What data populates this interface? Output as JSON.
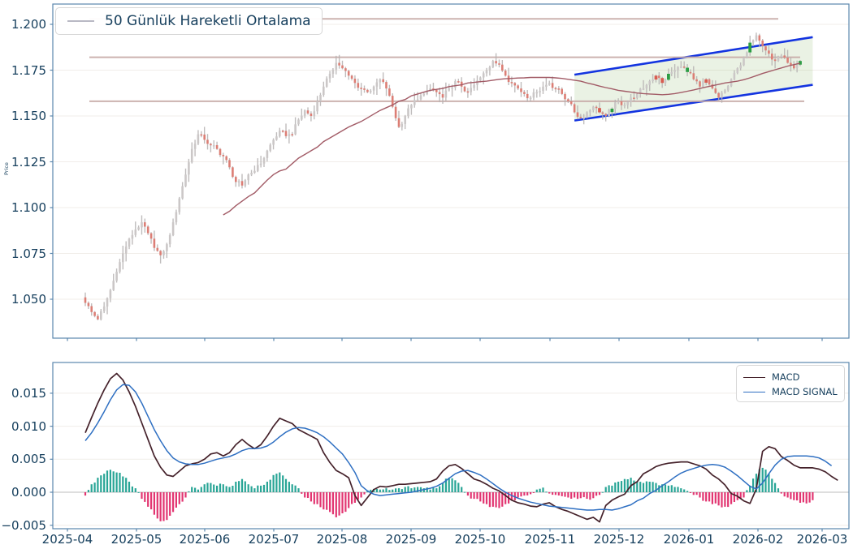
{
  "price_panel": {
    "legend_label": "50 Günlük Hareketli Ortalama",
    "ylabel": "Price",
    "ytick_labels": [
      "1.200",
      "1.175",
      "1.150",
      "1.125",
      "1.100",
      "1.075",
      "1.050"
    ]
  },
  "macd_panel": {
    "legend": {
      "macd_label": "MACD",
      "signal_label": "MACD SIGNAL"
    },
    "ytick_labels": [
      "0.015",
      "0.010",
      "0.005",
      "0.000",
      "−0.005"
    ]
  },
  "x_axis": {
    "tick_labels": [
      "2025-04",
      "2025-05",
      "2025-06",
      "2025-07",
      "2025-08",
      "2025-09",
      "2025-10",
      "2025-11",
      "2025-12",
      "2026-01",
      "2026-02",
      "2026-03"
    ]
  },
  "colors": {
    "text": "#17405e",
    "spine": "#5b87ad",
    "grid": "#f1ede9",
    "zero_line": "#bdbdbd",
    "wick": "#b5b1b1",
    "candle_up": "#cbc7c7",
    "candle_down": "#dc7e75",
    "candle_down_strong": "#d85c50",
    "candle_green": "#2b9e44",
    "ma": "#a25b66",
    "legend_sample": "#b9b9c4",
    "channel_line": "#1334e0",
    "channel_fill": "rgba(150,190,120,0.20)",
    "level": "#c7aaa7",
    "macd": "#45222b",
    "macd_signal": "#2e6fc2",
    "hist_pos": "#28a596",
    "hist_neg": "#e23571"
  },
  "chart_data": [
    {
      "type": "candlestick",
      "title": "",
      "ylabel": "Price",
      "legend": [
        "50 Günlük Hareketli Ortalama"
      ],
      "ylim": [
        1.029,
        1.211
      ],
      "yticks": [
        1.2,
        1.175,
        1.15,
        1.125,
        1.1,
        1.075,
        1.05
      ],
      "x_tick_labels": [
        "2025-04",
        "2025-05",
        "2025-06",
        "2025-07",
        "2025-08",
        "2025-09",
        "2025-10",
        "2025-11",
        "2025-12",
        "2026-01",
        "2026-02",
        "2026-03"
      ],
      "sampling": "close prices sampled about every 2 trading days, Apr 2025 - Feb 2026",
      "close": [
        1.048,
        1.043,
        1.039,
        1.046,
        1.055,
        1.065,
        1.075,
        1.083,
        1.088,
        1.092,
        1.086,
        1.078,
        1.074,
        1.08,
        1.092,
        1.105,
        1.118,
        1.132,
        1.14,
        1.137,
        1.134,
        1.132,
        1.128,
        1.122,
        1.114,
        1.112,
        1.118,
        1.12,
        1.124,
        1.131,
        1.137,
        1.142,
        1.139,
        1.14,
        1.148,
        1.153,
        1.15,
        1.158,
        1.166,
        1.173,
        1.179,
        1.176,
        1.172,
        1.168,
        1.165,
        1.163,
        1.166,
        1.17,
        1.165,
        1.155,
        1.144,
        1.15,
        1.156,
        1.159,
        1.162,
        1.165,
        1.163,
        1.16,
        1.165,
        1.169,
        1.166,
        1.163,
        1.167,
        1.171,
        1.175,
        1.18,
        1.178,
        1.172,
        1.168,
        1.165,
        1.162,
        1.16,
        1.163,
        1.166,
        1.168,
        1.165,
        1.162,
        1.158,
        1.152,
        1.149,
        1.152,
        1.155,
        1.152,
        1.15,
        1.154,
        1.158,
        1.156,
        1.16,
        1.162,
        1.165,
        1.169,
        1.172,
        1.168,
        1.173,
        1.175,
        1.177,
        1.174,
        1.17,
        1.166,
        1.17,
        1.165,
        1.16,
        1.164,
        1.17,
        1.176,
        1.182,
        1.19,
        1.194,
        1.188,
        1.184,
        1.18,
        1.183,
        1.179,
        1.176,
        1.18
      ],
      "ma50": {
        "start_index": 22,
        "values": [
          1.096,
          1.098,
          1.101,
          1.1035,
          1.106,
          1.108,
          1.1115,
          1.115,
          1.118,
          1.12,
          1.121,
          1.124,
          1.127,
          1.129,
          1.131,
          1.133,
          1.136,
          1.138,
          1.14,
          1.142,
          1.144,
          1.1455,
          1.147,
          1.149,
          1.151,
          1.153,
          1.1545,
          1.156,
          1.158,
          1.159,
          1.161,
          1.162,
          1.163,
          1.164,
          1.1645,
          1.165,
          1.166,
          1.1665,
          1.167,
          1.168,
          1.1683,
          1.1687,
          1.169,
          1.1695,
          1.17,
          1.1703,
          1.1705,
          1.1707,
          1.1708,
          1.171,
          1.171,
          1.171,
          1.171,
          1.1708,
          1.1705,
          1.17,
          1.1695,
          1.169,
          1.168,
          1.1672,
          1.1663,
          1.1655,
          1.1648,
          1.164,
          1.1635,
          1.163,
          1.1625,
          1.1622,
          1.162,
          1.1618,
          1.1616,
          1.1618,
          1.1622,
          1.1628,
          1.1635,
          1.1642,
          1.165,
          1.1658,
          1.1665,
          1.1672,
          1.168,
          1.1685,
          1.169,
          1.1698,
          1.1708,
          1.172,
          1.1732,
          1.1742,
          1.1752,
          1.1762,
          1.1772,
          1.178,
          1.1788
        ]
      },
      "support_resistance_levels": [
        1.203,
        1.182,
        1.158
      ],
      "trend_channel": {
        "start_index": 78,
        "end_index": 116,
        "upper": [
          1.1725,
          1.193
        ],
        "lower": [
          1.1475,
          1.167
        ]
      },
      "green_marker_indices": [
        84,
        93,
        96,
        106,
        114
      ],
      "red_marker_indices": [
        82,
        91,
        92,
        99
      ]
    },
    {
      "type": "macd",
      "x_aligned_with": "candlestick close array (same index grid)",
      "ylim": [
        -0.0056,
        0.0196
      ],
      "yticks": [
        0.015,
        0.01,
        0.005,
        0.0,
        -0.005
      ],
      "series": [
        {
          "name": "MACD",
          "values": [
            0.009,
            0.0113,
            0.0135,
            0.0155,
            0.0172,
            0.018,
            0.017,
            0.0152,
            0.013,
            0.0105,
            0.008,
            0.0055,
            0.0038,
            0.0026,
            0.0024,
            0.0032,
            0.004,
            0.0043,
            0.0045,
            0.005,
            0.0058,
            0.006,
            0.0055,
            0.006,
            0.0072,
            0.008,
            0.0072,
            0.0066,
            0.0072,
            0.0085,
            0.01,
            0.0112,
            0.0108,
            0.0104,
            0.0095,
            0.009,
            0.0085,
            0.008,
            0.006,
            0.0045,
            0.0033,
            0.0028,
            0.0022,
            -0.0005,
            -0.002,
            -0.0008,
            0.0004,
            0.0009,
            0.0008,
            0.001,
            0.0012,
            0.0012,
            0.0013,
            0.0014,
            0.0015,
            0.0016,
            0.002,
            0.0032,
            0.004,
            0.0042,
            0.0036,
            0.0028,
            0.002,
            0.0017,
            0.0012,
            0.0006,
            0.0002,
            -0.0005,
            -0.0012,
            -0.0016,
            -0.0018,
            -0.0021,
            -0.0022,
            -0.0018,
            -0.0016,
            -0.0022,
            -0.0026,
            -0.0029,
            -0.0033,
            -0.0037,
            -0.0041,
            -0.0038,
            -0.0045,
            -0.002,
            -0.0012,
            -0.0007,
            -0.0003,
            0.001,
            0.0016,
            0.0028,
            0.0033,
            0.0039,
            0.0042,
            0.0044,
            0.0045,
            0.0046,
            0.0046,
            0.0043,
            0.004,
            0.0035,
            0.0026,
            0.002,
            0.0011,
            -0.0002,
            -0.0006,
            -0.0013,
            -0.0017,
            0.0005,
            0.0062,
            0.0069,
            0.0066,
            0.0054,
            0.0048,
            0.0041,
            0.0037,
            0.0037,
            0.0037,
            0.0035,
            0.0031,
            0.0024,
            0.0018
          ]
        },
        {
          "name": "MACD SIGNAL",
          "values": [
            0.0078,
            0.009,
            0.0105,
            0.0122,
            0.014,
            0.0155,
            0.0163,
            0.0162,
            0.0152,
            0.0135,
            0.0115,
            0.0095,
            0.0078,
            0.0063,
            0.0052,
            0.0046,
            0.0043,
            0.0042,
            0.0042,
            0.0044,
            0.0047,
            0.005,
            0.0052,
            0.0054,
            0.0058,
            0.0063,
            0.0066,
            0.0066,
            0.0067,
            0.007,
            0.0076,
            0.0084,
            0.0091,
            0.0096,
            0.0098,
            0.0097,
            0.0094,
            0.009,
            0.0084,
            0.0076,
            0.0067,
            0.0058,
            0.0045,
            0.003,
            0.001,
            0.0002,
            -0.0003,
            -0.0005,
            -0.0004,
            -0.0003,
            -0.0002,
            -0.0001,
            0,
            0.0002,
            0.0004,
            0.0006,
            0.0009,
            0.0014,
            0.0021,
            0.0028,
            0.0032,
            0.0033,
            0.003,
            0.0026,
            0.002,
            0.0013,
            0.0006,
            0,
            -0.0005,
            -0.0009,
            -0.0012,
            -0.0015,
            -0.0017,
            -0.0019,
            -0.0021,
            -0.0022,
            -0.0023,
            -0.0024,
            -0.0025,
            -0.0026,
            -0.0027,
            -0.0027,
            -0.0026,
            -0.0026,
            -0.0027,
            -0.0025,
            -0.0022,
            -0.0019,
            -0.0013,
            -0.0009,
            -0.0002,
            0.0003,
            0.001,
            0.0016,
            0.0023,
            0.0029,
            0.0033,
            0.0036,
            0.0039,
            0.0041,
            0.0042,
            0.0041,
            0.0038,
            0.0032,
            0.0025,
            0.0017,
            0.0009,
            0.0005,
            0.0014,
            0.0028,
            0.0041,
            0.005,
            0.0054,
            0.0055,
            0.0055,
            0.0055,
            0.0054,
            0.0052,
            0.0047,
            0.004
          ]
        }
      ],
      "histogram": {
        "values": [
          -0.0005,
          0.0012,
          0.0022,
          0.0028,
          0.0034,
          0.003,
          0.0024,
          0.0016,
          0.0006,
          -0.001,
          -0.0022,
          -0.0034,
          -0.0044,
          -0.0042,
          -0.003,
          -0.0018,
          -0.0008,
          0.0008,
          0.0004,
          0.0012,
          0.0014,
          0.001,
          0.0012,
          0.0008,
          0.0016,
          0.002,
          0.0012,
          0.0006,
          0.001,
          0.0016,
          0.0026,
          0.003,
          0.002,
          0.0012,
          0.0006,
          -0.0008,
          -0.0014,
          -0.0018,
          -0.0026,
          -0.003,
          -0.0038,
          -0.0032,
          -0.0024,
          -0.0016,
          -0.0008,
          0.0003,
          0.0005,
          0.0004,
          0.0006,
          0.0004,
          0.0006,
          0.0008,
          0.0006,
          0.0008,
          0.0006,
          0.0004,
          0.0006,
          0.0014,
          0.0022,
          0.0018,
          0.0008,
          -0.0005,
          -0.001,
          -0.0014,
          -0.0018,
          -0.0022,
          -0.0024,
          -0.0018,
          -0.0012,
          -0.0008,
          -0.0005,
          -0.0003,
          0.0004,
          0.0007,
          -0.0002,
          -0.0004,
          -0.0006,
          -0.0008,
          -0.0008,
          -0.0009,
          -0.001,
          -0.0009,
          -0.0004,
          0.0008,
          0.001,
          0.0016,
          0.002,
          0.0022,
          0.0016,
          0.0014,
          0.0016,
          0.0014,
          0.0012,
          0.001,
          0.0008,
          0.0006,
          0.0002,
          -0.0004,
          -0.0008,
          -0.0014,
          -0.0018,
          -0.002,
          -0.0022,
          -0.0018,
          -0.0012,
          -0.0008,
          0.001,
          0.0028,
          0.0037,
          0.0028,
          0.0014,
          -0.0002,
          -0.0008,
          -0.0012,
          -0.0016,
          -0.0017,
          -0.0012
        ]
      }
    }
  ]
}
